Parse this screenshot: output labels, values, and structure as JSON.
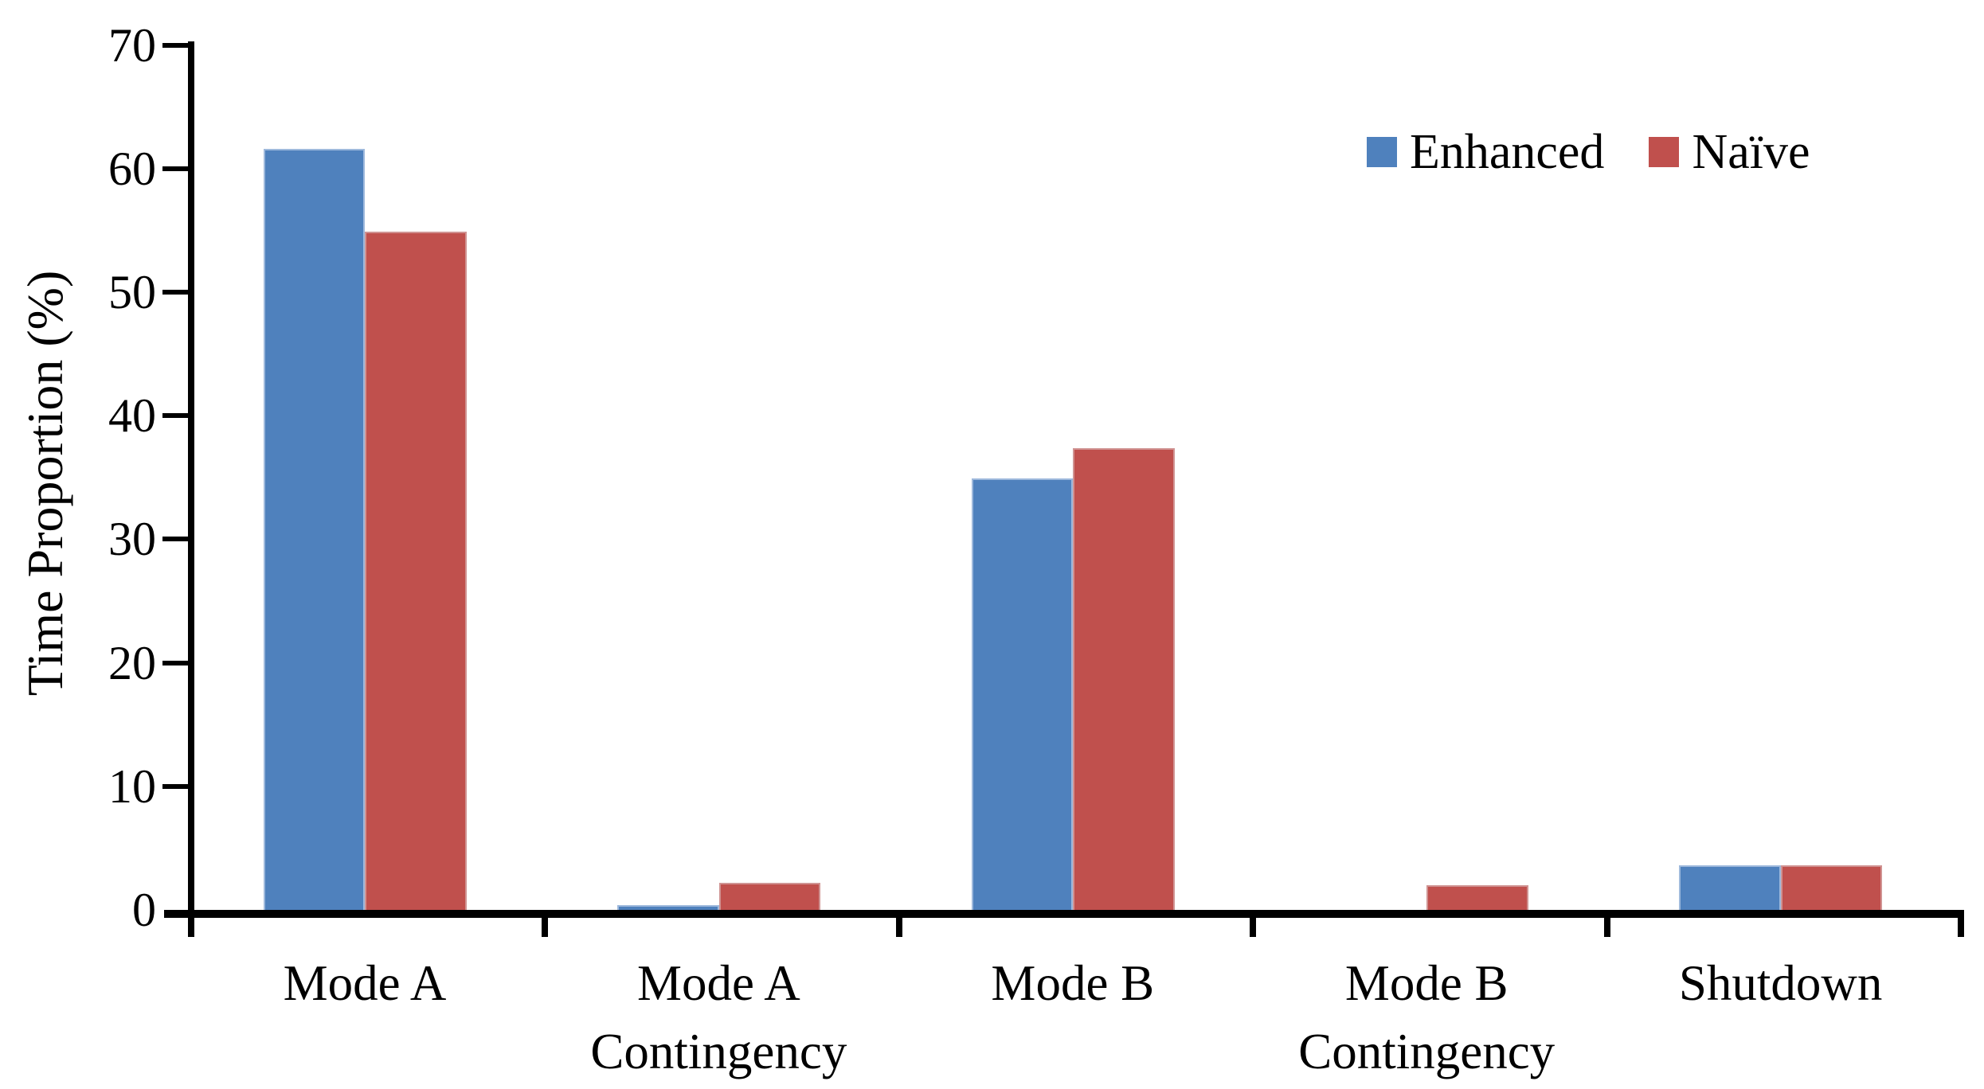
{
  "chart_data": {
    "type": "bar",
    "title": "",
    "categories": [
      "Mode A",
      "Mode A Contingency",
      "Mode B",
      "Mode B Contingency",
      "Shutdown"
    ],
    "category_label_lines": [
      [
        "Mode A"
      ],
      [
        "Mode A",
        "Contingency"
      ],
      [
        "Mode B"
      ],
      [
        "Mode B",
        "Contingency"
      ],
      [
        "Shutdown"
      ]
    ],
    "series": [
      {
        "name": "Enhanced",
        "color": "#4F81BD",
        "values": [
          61.6,
          0.4,
          34.9,
          0,
          3.6
        ]
      },
      {
        "name": "Naïve",
        "color": "#C0504D",
        "values": [
          54.9,
          2.2,
          37.4,
          2.0,
          3.6
        ]
      }
    ],
    "ylabel": "Time Proportion (%)",
    "yticks": [
      0,
      10,
      20,
      30,
      40,
      50,
      60,
      70
    ],
    "ylim": [
      0,
      70
    ],
    "grid": false,
    "legend_position": "top-right",
    "axis_color": "#000000",
    "background_color": "#FFFFFF"
  }
}
